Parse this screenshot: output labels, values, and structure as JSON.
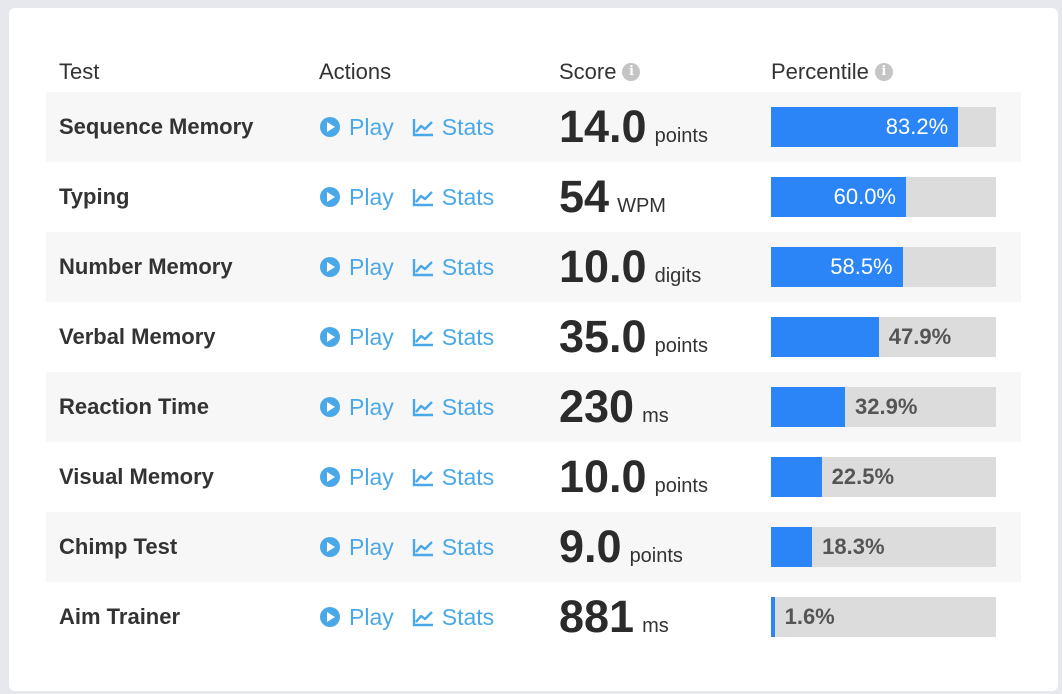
{
  "headers": {
    "test": "Test",
    "actions": "Actions",
    "score": "Score",
    "percentile": "Percentile"
  },
  "actions": {
    "play_label": "Play",
    "stats_label": "Stats"
  },
  "colors": {
    "accent": "#4aa8e8",
    "bar_fill": "#2b85f7",
    "bar_track": "#dcdcdc"
  },
  "rows": [
    {
      "test": "Sequence Memory",
      "score": "14.0",
      "unit": "points",
      "percentile": 83.2,
      "percentile_label": "83.2%"
    },
    {
      "test": "Typing",
      "score": "54",
      "unit": "WPM",
      "percentile": 60.0,
      "percentile_label": "60.0%"
    },
    {
      "test": "Number Memory",
      "score": "10.0",
      "unit": "digits",
      "percentile": 58.5,
      "percentile_label": "58.5%"
    },
    {
      "test": "Verbal Memory",
      "score": "35.0",
      "unit": "points",
      "percentile": 47.9,
      "percentile_label": "47.9%"
    },
    {
      "test": "Reaction Time",
      "score": "230",
      "unit": "ms",
      "percentile": 32.9,
      "percentile_label": "32.9%"
    },
    {
      "test": "Visual Memory",
      "score": "10.0",
      "unit": "points",
      "percentile": 22.5,
      "percentile_label": "22.5%"
    },
    {
      "test": "Chimp Test",
      "score": "9.0",
      "unit": "points",
      "percentile": 18.3,
      "percentile_label": "18.3%"
    },
    {
      "test": "Aim Trainer",
      "score": "881",
      "unit": "ms",
      "percentile": 1.6,
      "percentile_label": "1.6%"
    }
  ]
}
